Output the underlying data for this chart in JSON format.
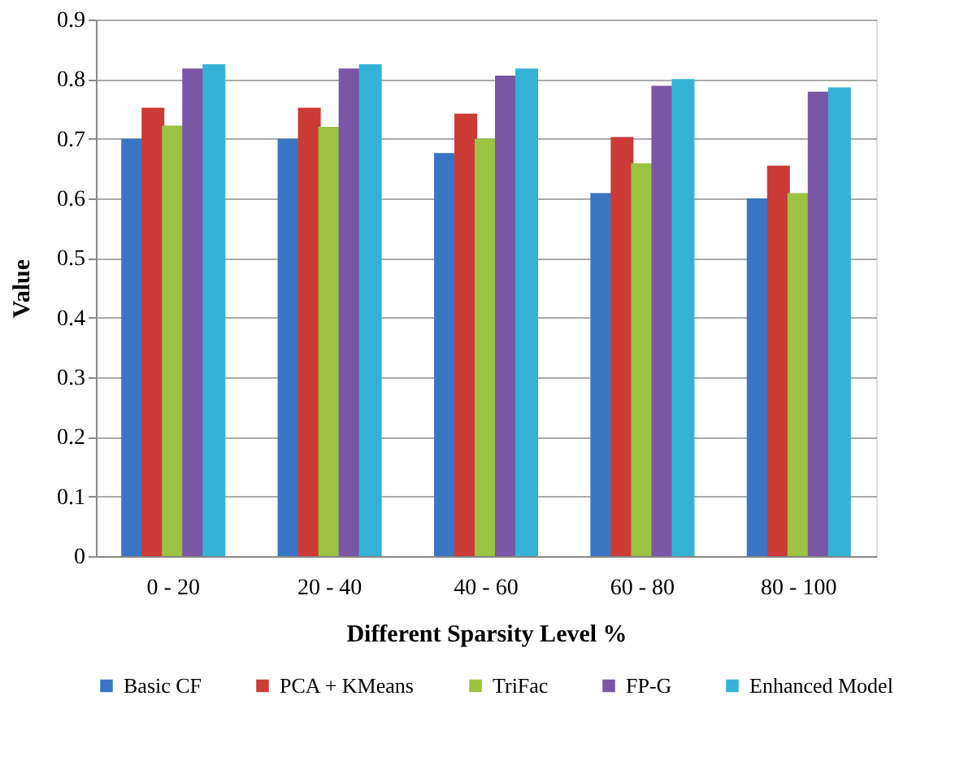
{
  "chart_data": {
    "type": "bar",
    "xlabel": "Different Sparsity Level %",
    "ylabel": "Value",
    "categories": [
      "0 - 20",
      "20 - 40",
      "40 - 60",
      "60 - 80",
      "80 - 100"
    ],
    "series": [
      {
        "name": "Basic CF",
        "color": "#3a75c4",
        "values": [
          0.7,
          0.7,
          0.676,
          0.609,
          0.6
        ]
      },
      {
        "name": "PCA + KMeans",
        "color": "#cc3a36",
        "values": [
          0.752,
          0.752,
          0.742,
          0.703,
          0.655
        ]
      },
      {
        "name": "TriFac",
        "color": "#9bc243",
        "values": [
          0.722,
          0.72,
          0.7,
          0.659,
          0.609
        ]
      },
      {
        "name": "FP-G",
        "color": "#7a56a6",
        "values": [
          0.818,
          0.818,
          0.806,
          0.789,
          0.779
        ]
      },
      {
        "name": "Enhanced Model",
        "color": "#34b2d6",
        "values": [
          0.825,
          0.825,
          0.818,
          0.8,
          0.786
        ]
      }
    ],
    "ylim": [
      0,
      0.9
    ],
    "yticks": [
      0,
      0.1,
      0.2,
      0.3,
      0.4,
      0.5,
      0.6,
      0.7,
      0.8,
      0.9
    ],
    "grid": "y",
    "legend": "bottom"
  }
}
